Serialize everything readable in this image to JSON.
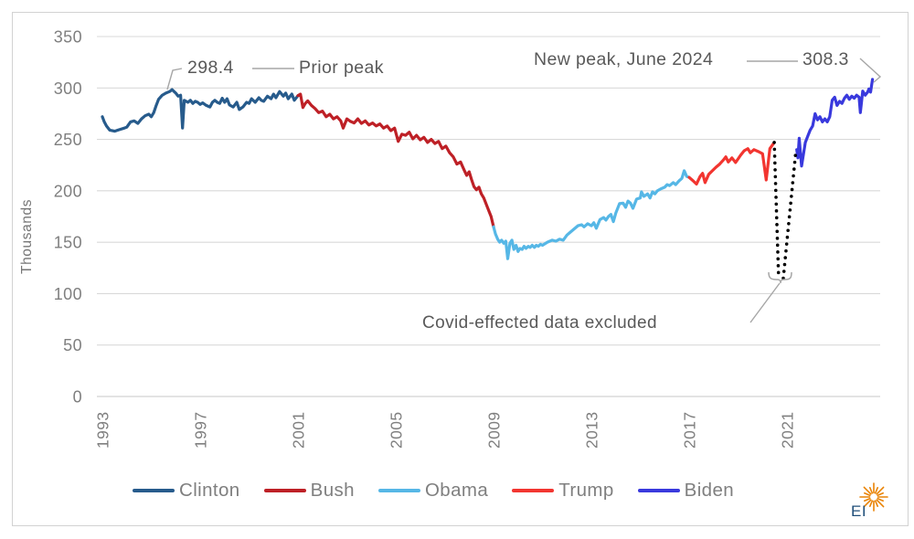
{
  "chart_meta": {
    "y_axis_title": "Thousands",
    "y_ticks": [
      350,
      300,
      250,
      200,
      150,
      100,
      50,
      0
    ],
    "x_ticks": [
      1993,
      1997,
      2001,
      2005,
      2009,
      2013,
      2017,
      2021
    ],
    "grid_color": "#d9d9d9",
    "tick_text_color": "#7f7f7f",
    "annotation_text_color": "#595959",
    "callout_line_color": "#a6a6a6"
  },
  "annotations": {
    "prior_peak_value": "298.4",
    "prior_peak_label": "Prior peak",
    "new_peak_label": "New peak, June 2024",
    "new_peak_value": "308.3",
    "covid_note": "Covid-effected data excluded"
  },
  "logo": {
    "text": "EI",
    "text_color": "#1f4e79",
    "ray_color": "#e98305"
  },
  "chart_data": {
    "type": "line",
    "xlabel": "",
    "ylabel": "Thousands",
    "ylim": [
      0,
      350
    ],
    "xlim": [
      1993,
      2024.6
    ],
    "grid": "horizontal",
    "legend_position": "bottom",
    "excluded_gap": {
      "label": "Covid-effected data excluded",
      "color": "#000000",
      "style": "dotted",
      "segments": [
        [
          [
            2020.48,
            247
          ],
          [
            2020.66,
            115
          ]
        ],
        [
          [
            2020.85,
            115
          ],
          [
            2021.37,
            240
          ]
        ]
      ]
    },
    "series": [
      {
        "name": "Clinton",
        "color": "#275b8c",
        "points": [
          [
            1993.0,
            272
          ],
          [
            1993.08,
            267
          ],
          [
            1993.17,
            263
          ],
          [
            1993.3,
            259
          ],
          [
            1993.5,
            258
          ],
          [
            1993.7,
            259.5
          ],
          [
            1993.9,
            261
          ],
          [
            1994.0,
            262
          ],
          [
            1994.15,
            267
          ],
          [
            1994.3,
            268
          ],
          [
            1994.45,
            265.5
          ],
          [
            1994.6,
            270
          ],
          [
            1994.75,
            273
          ],
          [
            1994.9,
            274.5
          ],
          [
            1995.0,
            272
          ],
          [
            1995.1,
            276
          ],
          [
            1995.2,
            283
          ],
          [
            1995.3,
            289
          ],
          [
            1995.45,
            293
          ],
          [
            1995.6,
            295
          ],
          [
            1995.75,
            296.5
          ],
          [
            1995.85,
            298.4
          ],
          [
            1996.0,
            295
          ],
          [
            1996.1,
            292
          ],
          [
            1996.2,
            293
          ],
          [
            1996.28,
            261
          ],
          [
            1996.35,
            288
          ],
          [
            1996.5,
            286
          ],
          [
            1996.6,
            288
          ],
          [
            1996.7,
            285
          ],
          [
            1996.8,
            287
          ],
          [
            1996.9,
            286
          ],
          [
            1997.0,
            284
          ],
          [
            1997.1,
            285.5
          ],
          [
            1997.25,
            283
          ],
          [
            1997.4,
            281.5
          ],
          [
            1997.5,
            286
          ],
          [
            1997.6,
            288
          ],
          [
            1997.7,
            286
          ],
          [
            1997.8,
            285
          ],
          [
            1997.9,
            290
          ],
          [
            1998.0,
            286
          ],
          [
            1998.1,
            289.5
          ],
          [
            1998.2,
            283.5
          ],
          [
            1998.35,
            281.5
          ],
          [
            1998.5,
            286
          ],
          [
            1998.6,
            279
          ],
          [
            1998.75,
            281.5
          ],
          [
            1998.9,
            286
          ],
          [
            1999.0,
            285
          ],
          [
            1999.1,
            289.5
          ],
          [
            1999.25,
            286
          ],
          [
            1999.4,
            290.5
          ],
          [
            1999.5,
            288
          ],
          [
            1999.6,
            287
          ],
          [
            1999.75,
            292
          ],
          [
            1999.9,
            289.5
          ],
          [
            2000.0,
            294
          ],
          [
            2000.1,
            290.5
          ],
          [
            2000.25,
            296.5
          ],
          [
            2000.4,
            292
          ],
          [
            2000.5,
            295
          ],
          [
            2000.6,
            289.5
          ],
          [
            2000.75,
            294
          ],
          [
            2000.85,
            288
          ],
          [
            2001.0,
            292.5
          ]
        ]
      },
      {
        "name": "Bush",
        "color": "#be2026",
        "points": [
          [
            2001.0,
            292.5
          ],
          [
            2001.1,
            294
          ],
          [
            2001.2,
            281
          ],
          [
            2001.3,
            285
          ],
          [
            2001.4,
            287.5
          ],
          [
            2001.55,
            283
          ],
          [
            2001.7,
            280
          ],
          [
            2001.85,
            276
          ],
          [
            2002.0,
            277.5
          ],
          [
            2002.15,
            272
          ],
          [
            2002.3,
            274.5
          ],
          [
            2002.45,
            270
          ],
          [
            2002.6,
            272
          ],
          [
            2002.75,
            268
          ],
          [
            2002.85,
            261
          ],
          [
            2003.0,
            270
          ],
          [
            2003.15,
            267.5
          ],
          [
            2003.3,
            266
          ],
          [
            2003.45,
            270
          ],
          [
            2003.6,
            265.5
          ],
          [
            2003.75,
            268
          ],
          [
            2003.9,
            264
          ],
          [
            2004.05,
            266
          ],
          [
            2004.2,
            263
          ],
          [
            2004.35,
            265
          ],
          [
            2004.5,
            261
          ],
          [
            2004.65,
            263
          ],
          [
            2004.8,
            258.5
          ],
          [
            2004.95,
            261
          ],
          [
            2005.1,
            248
          ],
          [
            2005.25,
            255
          ],
          [
            2005.4,
            254
          ],
          [
            2005.55,
            257
          ],
          [
            2005.7,
            250.5
          ],
          [
            2005.85,
            254
          ],
          [
            2006.0,
            249.5
          ],
          [
            2006.15,
            252
          ],
          [
            2006.3,
            247
          ],
          [
            2006.45,
            250
          ],
          [
            2006.6,
            246
          ],
          [
            2006.75,
            248
          ],
          [
            2006.9,
            241
          ],
          [
            2007.05,
            243.5
          ],
          [
            2007.2,
            237
          ],
          [
            2007.35,
            233
          ],
          [
            2007.5,
            226
          ],
          [
            2007.65,
            228
          ],
          [
            2007.8,
            220
          ],
          [
            2007.9,
            215
          ],
          [
            2008.0,
            218.5
          ],
          [
            2008.1,
            211
          ],
          [
            2008.2,
            204
          ],
          [
            2008.3,
            201
          ],
          [
            2008.4,
            203.5
          ],
          [
            2008.5,
            197
          ],
          [
            2008.6,
            193
          ],
          [
            2008.75,
            184
          ],
          [
            2008.9,
            175
          ],
          [
            2009.0,
            165
          ]
        ]
      },
      {
        "name": "Obama",
        "color": "#56b7e6",
        "points": [
          [
            2009.0,
            165
          ],
          [
            2009.08,
            158
          ],
          [
            2009.17,
            153
          ],
          [
            2009.25,
            150
          ],
          [
            2009.33,
            152
          ],
          [
            2009.42,
            149
          ],
          [
            2009.5,
            151
          ],
          [
            2009.58,
            134
          ],
          [
            2009.67,
            149
          ],
          [
            2009.75,
            152
          ],
          [
            2009.83,
            143
          ],
          [
            2009.92,
            147
          ],
          [
            2010.0,
            141
          ],
          [
            2010.08,
            144
          ],
          [
            2010.17,
            143
          ],
          [
            2010.25,
            146
          ],
          [
            2010.33,
            144
          ],
          [
            2010.42,
            146
          ],
          [
            2010.5,
            145
          ],
          [
            2010.58,
            147
          ],
          [
            2010.67,
            145
          ],
          [
            2010.75,
            147
          ],
          [
            2010.83,
            146
          ],
          [
            2010.92,
            148
          ],
          [
            2011.0,
            147
          ],
          [
            2011.2,
            150
          ],
          [
            2011.4,
            152
          ],
          [
            2011.55,
            151
          ],
          [
            2011.7,
            153
          ],
          [
            2011.85,
            152
          ],
          [
            2012.0,
            157
          ],
          [
            2012.15,
            160
          ],
          [
            2012.3,
            163
          ],
          [
            2012.45,
            166
          ],
          [
            2012.6,
            167
          ],
          [
            2012.7,
            165
          ],
          [
            2012.85,
            168
          ],
          [
            2013.0,
            166
          ],
          [
            2013.1,
            169
          ],
          [
            2013.2,
            163.5
          ],
          [
            2013.35,
            172
          ],
          [
            2013.5,
            174
          ],
          [
            2013.6,
            171.5
          ],
          [
            2013.7,
            175
          ],
          [
            2013.8,
            177
          ],
          [
            2013.9,
            170
          ],
          [
            2014.0,
            178.5
          ],
          [
            2014.15,
            187.5
          ],
          [
            2014.3,
            188
          ],
          [
            2014.4,
            184
          ],
          [
            2014.5,
            190
          ],
          [
            2014.6,
            188
          ],
          [
            2014.7,
            183
          ],
          [
            2014.85,
            192
          ],
          [
            2015.0,
            193
          ],
          [
            2015.05,
            199
          ],
          [
            2015.15,
            194.5
          ],
          [
            2015.3,
            197
          ],
          [
            2015.4,
            193
          ],
          [
            2015.5,
            199
          ],
          [
            2015.6,
            197
          ],
          [
            2015.7,
            200
          ],
          [
            2015.85,
            202
          ],
          [
            2016.0,
            203.5
          ],
          [
            2016.1,
            206
          ],
          [
            2016.2,
            205
          ],
          [
            2016.35,
            208
          ],
          [
            2016.45,
            206
          ],
          [
            2016.6,
            210
          ],
          [
            2016.7,
            212
          ],
          [
            2016.8,
            219.5
          ],
          [
            2016.9,
            214
          ],
          [
            2017.0,
            213
          ]
        ]
      },
      {
        "name": "Trump",
        "color": "#f23530",
        "points": [
          [
            2017.0,
            213
          ],
          [
            2017.15,
            210
          ],
          [
            2017.3,
            206.5
          ],
          [
            2017.45,
            214
          ],
          [
            2017.55,
            217
          ],
          [
            2017.65,
            208
          ],
          [
            2017.8,
            216
          ],
          [
            2017.95,
            219.5
          ],
          [
            2018.1,
            223
          ],
          [
            2018.25,
            226
          ],
          [
            2018.4,
            230
          ],
          [
            2018.5,
            233
          ],
          [
            2018.6,
            228
          ],
          [
            2018.75,
            232
          ],
          [
            2018.9,
            227.5
          ],
          [
            2019.0,
            231
          ],
          [
            2019.1,
            234.5
          ],
          [
            2019.25,
            239
          ],
          [
            2019.4,
            241
          ],
          [
            2019.5,
            237
          ],
          [
            2019.65,
            240
          ],
          [
            2019.85,
            238
          ],
          [
            2020.0,
            236
          ],
          [
            2020.15,
            210.5
          ],
          [
            2020.3,
            241
          ],
          [
            2020.48,
            247
          ]
        ]
      },
      {
        "name": "Biden",
        "color": "#3939dd",
        "points": [
          [
            2021.4,
            240
          ],
          [
            2021.45,
            232
          ],
          [
            2021.5,
            251
          ],
          [
            2021.6,
            224
          ],
          [
            2021.75,
            247
          ],
          [
            2021.85,
            253
          ],
          [
            2021.95,
            259
          ],
          [
            2022.05,
            263
          ],
          [
            2022.15,
            275
          ],
          [
            2022.25,
            269
          ],
          [
            2022.35,
            272
          ],
          [
            2022.45,
            267
          ],
          [
            2022.55,
            270
          ],
          [
            2022.65,
            267
          ],
          [
            2022.75,
            272
          ],
          [
            2022.85,
            288
          ],
          [
            2022.95,
            291
          ],
          [
            2023.05,
            283
          ],
          [
            2023.15,
            287
          ],
          [
            2023.25,
            285
          ],
          [
            2023.35,
            290
          ],
          [
            2023.45,
            293
          ],
          [
            2023.55,
            289
          ],
          [
            2023.65,
            292
          ],
          [
            2023.75,
            290
          ],
          [
            2023.85,
            293
          ],
          [
            2023.95,
            291
          ],
          [
            2024.0,
            276
          ],
          [
            2024.1,
            297
          ],
          [
            2024.2,
            293
          ],
          [
            2024.3,
            296
          ],
          [
            2024.35,
            299
          ],
          [
            2024.42,
            296
          ],
          [
            2024.5,
            308.3
          ]
        ]
      }
    ]
  }
}
